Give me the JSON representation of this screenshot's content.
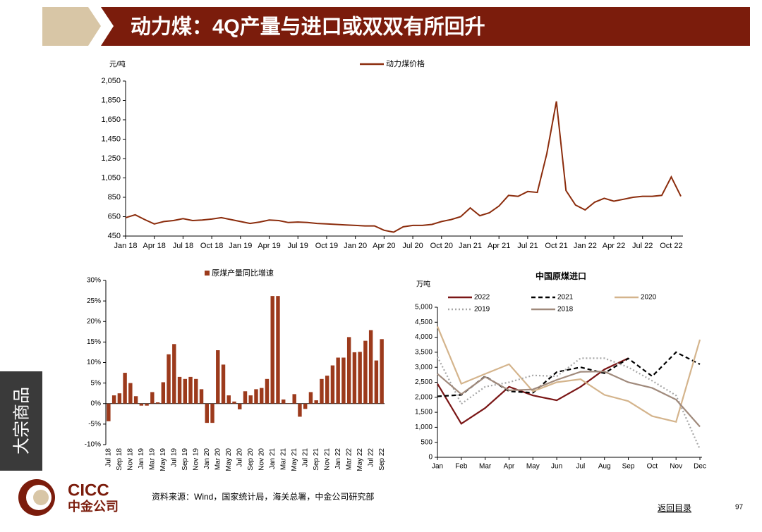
{
  "header": {
    "title": "动力煤：4Q产量与进口或双双有所回升"
  },
  "side_tab": "大宗商品",
  "chart_data": [
    {
      "type": "line",
      "y_label": "元/吨",
      "categories": [
        "Jan 18",
        null,
        null,
        "Apr 18",
        null,
        null,
        "Jul 18",
        null,
        null,
        "Oct 18",
        null,
        null,
        "Jan 19",
        null,
        null,
        "Apr 19",
        null,
        null,
        "Jul 19",
        null,
        null,
        "Oct 19",
        null,
        null,
        "Jan 20",
        null,
        null,
        "Apr 20",
        null,
        null,
        "Jul 20",
        null,
        null,
        "Oct 20",
        null,
        null,
        "Jan 21",
        null,
        null,
        "Apr 21",
        null,
        null,
        "Jul 21",
        null,
        null,
        "Oct 21",
        null,
        null,
        "Jan 22",
        null,
        null,
        "Apr 22",
        null,
        null,
        "Jul 22",
        null,
        null,
        "Oct 22",
        null
      ],
      "series": [
        {
          "name": "动力煤价格",
          "color": "#8b2c0c",
          "style": "solid",
          "values": [
            640,
            670,
            620,
            575,
            600,
            610,
            630,
            610,
            615,
            625,
            640,
            620,
            600,
            580,
            595,
            615,
            610,
            590,
            595,
            590,
            580,
            575,
            570,
            565,
            560,
            555,
            555,
            510,
            490,
            545,
            560,
            560,
            570,
            600,
            620,
            650,
            740,
            660,
            690,
            760,
            870,
            860,
            910,
            900,
            1300,
            1840,
            920,
            770,
            720,
            800,
            840,
            810,
            830,
            850,
            860,
            860,
            870,
            1060,
            860
          ]
        }
      ],
      "ylim": [
        450,
        2050
      ],
      "yticks": [
        450,
        650,
        850,
        {
          "value": 1050,
          "label": "1,050"
        },
        {
          "value": 1250,
          "label": "1,250"
        },
        {
          "value": 1450,
          "label": "1,450"
        },
        {
          "value": 1650,
          "label": "1,650"
        },
        {
          "value": 1850,
          "label": "1,850"
        },
        {
          "value": 2050,
          "label": "2,050"
        }
      ],
      "legend": "top"
    },
    {
      "type": "bar",
      "categories": [
        "Jul 18",
        null,
        "Sep 18",
        null,
        "Nov 18",
        null,
        "Jan 19",
        null,
        "Mar 19",
        null,
        "May 19",
        null,
        "Jul 19",
        null,
        "Sep 19",
        null,
        "Nov 19",
        null,
        "Jan 20",
        null,
        "Mar 20",
        null,
        "May 20",
        null,
        "Jul 20",
        null,
        "Sep 20",
        null,
        "Nov 20",
        null,
        "Jan 21",
        null,
        "Mar 21",
        null,
        "May 21",
        null,
        "Jul 21",
        null,
        "Sep 21",
        null,
        "Nov 21",
        null,
        "Jan 22",
        null,
        "Mar 22",
        null,
        "May 22",
        null,
        "Jul 22",
        null,
        "Sep 22"
      ],
      "series": [
        {
          "name": "原煤产量同比增速",
          "color": "#9c3a1c",
          "values": [
            -4.3,
            2,
            2.5,
            7.5,
            5,
            1.8,
            -0.5,
            -0.5,
            2.8,
            0.3,
            5.2,
            12,
            14.5,
            6.5,
            6,
            6.5,
            6,
            3.5,
            -4.7,
            -4.7,
            13,
            9.5,
            2,
            0.5,
            -1.4,
            3,
            2,
            3.5,
            3.8,
            6,
            26.2,
            26.2,
            1,
            0.1,
            2.3,
            -3.2,
            -1.3,
            2.8,
            0.8,
            6,
            6.8,
            9.3,
            11.2,
            11.2,
            16.2,
            12.5,
            12.6,
            15.3,
            17.9,
            10.5,
            15.7
          ]
        }
      ],
      "ylim": [
        -10,
        30
      ],
      "yticks": [
        {
          "value": -10,
          "label": "-10%"
        },
        {
          "value": -5,
          "label": "-5%"
        },
        {
          "value": 0,
          "label": "0%"
        },
        {
          "value": 5,
          "label": "5%"
        },
        {
          "value": 10,
          "label": "10%"
        },
        {
          "value": 15,
          "label": "15%"
        },
        {
          "value": 20,
          "label": "20%"
        },
        {
          "value": 25,
          "label": "25%"
        },
        {
          "value": 30,
          "label": "30%"
        }
      ],
      "legend": "top"
    },
    {
      "type": "line",
      "title": "中国原煤进口",
      "y_label": "万吨",
      "categories": [
        "Jan",
        "Feb",
        "Mar",
        "Apr",
        "May",
        "Jun",
        "Jul",
        "Aug",
        "Sep",
        "Oct",
        "Nov",
        "Dec"
      ],
      "series": [
        {
          "name": "2022",
          "color": "#7a1616",
          "style": "solid",
          "values": [
            2450,
            1120,
            1640,
            2350,
            2060,
            1900,
            2350,
            2930,
            3300,
            null,
            null,
            null
          ]
        },
        {
          "name": "2021",
          "color": "#000000",
          "style": "dashed",
          "values": [
            2030,
            2080,
            2700,
            2200,
            2150,
            2840,
            3000,
            2800,
            3290,
            2700,
            3500,
            3100
          ]
        },
        {
          "name": "2020",
          "color": "#d4b48c",
          "style": "solid",
          "values": [
            4360,
            2450,
            2780,
            3100,
            2200,
            2500,
            2600,
            2080,
            1870,
            1370,
            1180,
            3920
          ]
        },
        {
          "name": "2019",
          "color": "#a6a6a6",
          "style": "dotted",
          "values": [
            3350,
            1780,
            2350,
            2500,
            2730,
            2700,
            3300,
            3300,
            3000,
            2550,
            2060,
            270
          ]
        },
        {
          "name": "2018",
          "color": "#a08a7c",
          "style": "solid",
          "values": [
            2780,
            2100,
            2680,
            2230,
            2260,
            2580,
            2850,
            2860,
            2500,
            2310,
            1920,
            1020
          ]
        }
      ],
      "ylim": [
        0,
        5000
      ],
      "yticks": [
        0,
        500,
        {
          "value": 1000,
          "label": "1,000"
        },
        {
          "value": 1500,
          "label": "1,500"
        },
        {
          "value": 2000,
          "label": "2,000"
        },
        {
          "value": 2500,
          "label": "2,500"
        },
        {
          "value": 3000,
          "label": "3,000"
        },
        {
          "value": 3500,
          "label": "3,500"
        },
        {
          "value": 4000,
          "label": "4,000"
        },
        {
          "value": 4500,
          "label": "4,500"
        },
        {
          "value": 5000,
          "label": "5,000"
        }
      ],
      "legend": "top"
    }
  ],
  "footer": {
    "logo": "CICC",
    "logo_cn": "中金公司",
    "source": "资料来源：Wind，国家统计局，海关总署，中金公司研究部",
    "link": "返回目录",
    "page": "97"
  }
}
